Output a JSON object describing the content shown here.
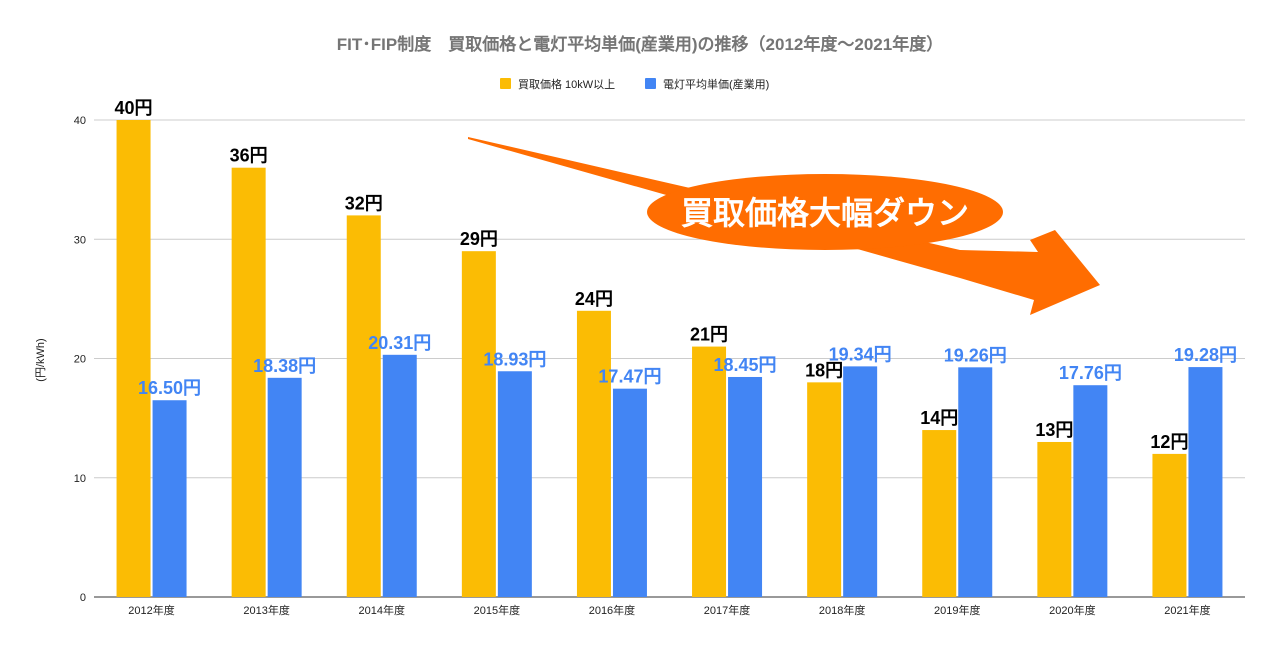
{
  "chart_data": {
    "type": "bar",
    "title": "FIT･FIP制度　買取価格と電灯平均単価(産業用)の推移（2012年度～2021年度）",
    "xlabel": "",
    "ylabel": "(円/kWh)",
    "ylim": [
      0,
      40
    ],
    "yticks": [
      "0",
      "10",
      "20",
      "30",
      "40"
    ],
    "grid": true,
    "legend": "top",
    "categories": [
      "2012年度",
      "2013年度",
      "2014年度",
      "2015年度",
      "2016年度",
      "2017年度",
      "2018年度",
      "2019年度",
      "2020年度",
      "2021年度"
    ],
    "series": [
      {
        "name": "買取価格 10kW以上",
        "color": "#fbbc04",
        "label_color": "#000000",
        "values": [
          40,
          36,
          32,
          29,
          24,
          21,
          18,
          14,
          13,
          12
        ],
        "labels": [
          "40円",
          "36円",
          "32円",
          "29円",
          "24円",
          "21円",
          "18円",
          "14円",
          "13円",
          "12円"
        ]
      },
      {
        "name": "電灯平均単価(産業用)",
        "color": "#4285f4",
        "label_color": "#4285f4",
        "values": [
          16.5,
          18.38,
          20.31,
          18.93,
          17.47,
          18.45,
          19.34,
          19.26,
          17.76,
          19.28
        ],
        "labels": [
          "16.50円",
          "18.38円",
          "20.31円",
          "18.93円",
          "17.47円",
          "18.45円",
          "19.34円",
          "19.26円",
          "17.76円",
          "19.28円"
        ]
      }
    ],
    "annotation": {
      "text": "買取価格大幅ダウン",
      "color": "#ff6d01"
    }
  }
}
